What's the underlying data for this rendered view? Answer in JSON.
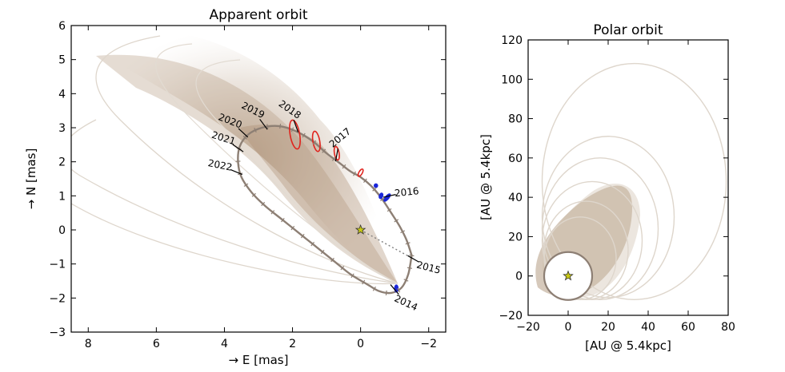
{
  "chart_data": [
    {
      "type": "line",
      "title": "Apparent orbit",
      "xlabel": "→ E [mas]",
      "ylabel": "→ N [mas]",
      "xlim": [
        8.5,
        -2.5
      ],
      "ylim": [
        -3,
        6
      ],
      "x_inverted": true,
      "xticks": [
        8,
        6,
        4,
        2,
        0,
        -2
      ],
      "xtick_labels": [
        "8",
        "6",
        "4",
        "2",
        "0",
        "−2"
      ],
      "yticks": [
        -3,
        -2,
        -1,
        0,
        1,
        2,
        3,
        4,
        5,
        6
      ],
      "ytick_labels": [
        "−3",
        "−2",
        "−1",
        "0",
        "1",
        "2",
        "3",
        "4",
        "5",
        "6"
      ],
      "star": [
        0,
        0
      ],
      "best_orbit": {
        "x": [
          -1.5,
          -1.4,
          -1.2,
          -0.9,
          -0.55,
          -0.2,
          0.3,
          0.8,
          1.3,
          1.8,
          2.3,
          2.8,
          3.2,
          3.5,
          3.6,
          3.55,
          3.3,
          2.9,
          2.4,
          1.9,
          1.4,
          1.0,
          0.6,
          0.3,
          0.0,
          -0.3,
          -0.6,
          -0.9,
          -1.15,
          -1.35,
          -1.5
        ],
        "y": [
          -0.75,
          -1.3,
          -1.7,
          -1.85,
          -1.8,
          -1.6,
          -1.3,
          -0.9,
          -0.5,
          -0.1,
          0.3,
          0.7,
          1.1,
          1.55,
          2.0,
          2.45,
          2.8,
          3.0,
          3.05,
          2.9,
          2.6,
          2.25,
          1.95,
          1.72,
          1.55,
          1.3,
          0.95,
          0.5,
          0.1,
          -0.3,
          -0.75
        ]
      },
      "periastron_line": {
        "x": [
          0,
          -1.55
        ],
        "y": [
          0,
          -0.85
        ]
      },
      "epoch_labels": [
        {
          "label": "2014",
          "x": -1.0,
          "y": -1.75
        },
        {
          "label": "2015",
          "x": -1.55,
          "y": -0.85
        },
        {
          "label": "2016",
          "x": -0.85,
          "y": 1.0
        },
        {
          "label": "2017",
          "x": 0.7,
          "y": 2.2
        },
        {
          "label": "2018",
          "x": 1.9,
          "y": 3.05
        },
        {
          "label": "2019",
          "x": 2.85,
          "y": 3.1
        },
        {
          "label": "2020",
          "x": 3.45,
          "y": 2.85
        },
        {
          "label": "2021",
          "x": 3.6,
          "y": 2.4
        },
        {
          "label": "2022",
          "x": 3.65,
          "y": 1.7
        }
      ],
      "astrometry_red": [
        {
          "x": 1.93,
          "y": 2.8,
          "rx": 0.14,
          "ry": 0.43,
          "angle": -10
        },
        {
          "x": 1.3,
          "y": 2.6,
          "rx": 0.1,
          "ry": 0.3,
          "angle": -10
        },
        {
          "x": 0.7,
          "y": 2.25,
          "rx": 0.07,
          "ry": 0.2,
          "angle": -10
        },
        {
          "x": 0.0,
          "y": 1.68,
          "rx": 0.05,
          "ry": 0.12,
          "angle": 30
        }
      ],
      "astrometry_blue": [
        {
          "x": -0.45,
          "y": 1.3,
          "rx": 0.03,
          "ry": 0.05,
          "angle": 0
        },
        {
          "x": -0.6,
          "y": 1.0,
          "rx": 0.04,
          "ry": 0.08,
          "angle": 20
        },
        {
          "x": -0.78,
          "y": 0.95,
          "rx": 0.04,
          "ry": 0.13,
          "angle": 40
        },
        {
          "x": -1.05,
          "y": -1.72,
          "rx": 0.04,
          "ry": 0.1,
          "angle": 0
        }
      ]
    },
    {
      "type": "line",
      "title": "Polar orbit",
      "xlabel": "[AU @ 5.4kpc]",
      "ylabel": "[AU @ 5.4kpc]",
      "xlim": [
        -20,
        80
      ],
      "ylim": [
        -20,
        120
      ],
      "xticks": [
        -20,
        0,
        20,
        40,
        60,
        80
      ],
      "xtick_labels": [
        "−20",
        "0",
        "20",
        "40",
        "60",
        "80"
      ],
      "yticks": [
        -20,
        0,
        20,
        40,
        60,
        80,
        100,
        120
      ],
      "ytick_labels": [
        "−20",
        "0",
        "20",
        "40",
        "60",
        "80",
        "100",
        "120"
      ],
      "star": [
        0,
        0
      ],
      "best_orbit": {
        "cx": 0,
        "cy": 0,
        "rx": 12,
        "ry": 12
      },
      "outer_orbits": [
        {
          "cx": 33,
          "cy": 48,
          "rx": 46,
          "ry": 60
        },
        {
          "cx": 20,
          "cy": 30,
          "rx": 33,
          "ry": 41
        },
        {
          "cx": 16,
          "cy": 24,
          "rx": 29,
          "ry": 36
        },
        {
          "cx": 12,
          "cy": 18,
          "rx": 25,
          "ry": 30
        },
        {
          "cx": 9,
          "cy": 13,
          "rx": 21,
          "ry": 25
        },
        {
          "cx": 6,
          "cy": 9,
          "rx": 18,
          "ry": 21
        }
      ]
    }
  ],
  "colors": {
    "best_orbit": "#8d7f74",
    "orbit_cloud": "#ac8f73",
    "faint_orbit": "#ded6cc",
    "astrometry_red": "#e0241e",
    "astrometry_blue": "#1a26d9",
    "star_fill": "#c8c814"
  }
}
